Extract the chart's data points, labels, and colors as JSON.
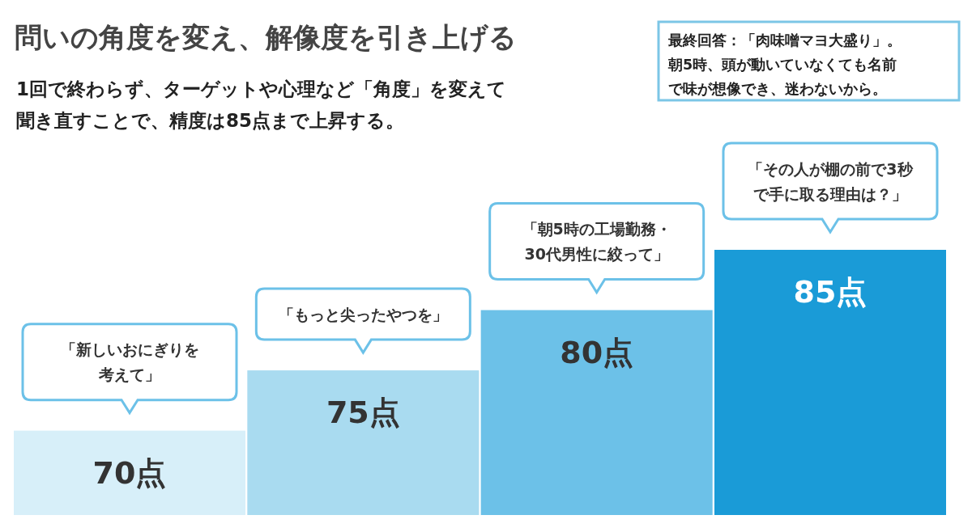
{
  "chart_data": {
    "type": "bar",
    "ylim": [
      63,
      85
    ],
    "tick_labels": false,
    "title": "問いの角度を変え、解像度を引き上げる",
    "subtitle": "1回で終わらず、ターゲットや心理など「角度」を変えて聞き直すことで、精度は85点まで上昇する。",
    "categories": [
      null,
      null,
      null,
      null
    ],
    "values": [
      70,
      75,
      80,
      85
    ],
    "colors": [
      "#d7eff9",
      "#a9dbf0",
      "#6cc1e8",
      "#1a9bd7"
    ],
    "value_labels": [
      "70点",
      "75点",
      "80点",
      "85点"
    ],
    "annotations": [
      "「新しいおにぎりを考えて」",
      "「もっと尖ったやつを」",
      "「朝5時の工場勤務・30代男性に絞って」",
      "「その人が棚の前で3秒で手に取る理由は？」",
      "最終回答：「肉味噌マヨ大盛り」。朝5時、頭が動いていなくても名前で味が想像でき、迷わないから。"
    ]
  }
}
